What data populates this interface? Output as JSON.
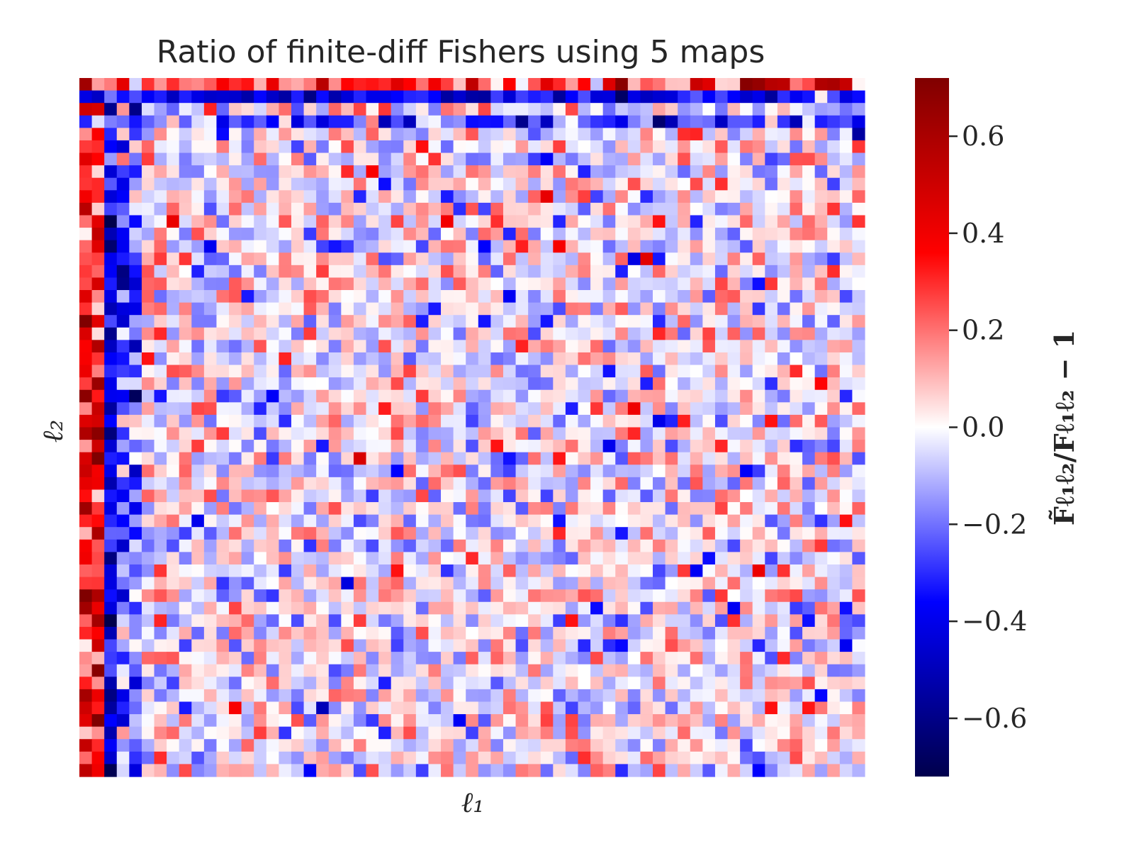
{
  "chart_data": {
    "type": "heatmap",
    "title": "Ratio of finite-diff Fishers using 5 maps",
    "xlabel": "ℓ₁",
    "ylabel": "ℓ₂",
    "colorbar": {
      "label": "F̃ℓ₁ℓ₂/Fℓ₁ℓ₂ − 1",
      "colormap": "seismic",
      "vmin": -0.72,
      "vmax": 0.72,
      "ticks": [
        0.6,
        0.4,
        0.2,
        0.0,
        -0.2,
        -0.4,
        -0.6
      ],
      "tick_labels": [
        "0.6",
        "0.4",
        "0.2",
        "0.0",
        "−0.2",
        "−0.4",
        "−0.6"
      ]
    },
    "grid": false,
    "rows": 56,
    "cols": 63,
    "structure": {
      "row_0_mean": 0.3,
      "row_1_mean": -0.4,
      "row_3_mean": -0.25,
      "col_0_mean": 0.35,
      "col_1_mean": 0.35,
      "col_2_mean": -0.4,
      "col_3_mean": -0.25,
      "col_4_mean": -0.2,
      "interior_mean": 0.0,
      "interior_spread": 0.14,
      "value_range": [
        -0.72,
        0.72
      ]
    },
    "colors": {
      "min": "#00004c",
      "blue": "#0000ff",
      "mid": "#ffffff",
      "red": "#ff0000",
      "max": "#800000"
    }
  }
}
